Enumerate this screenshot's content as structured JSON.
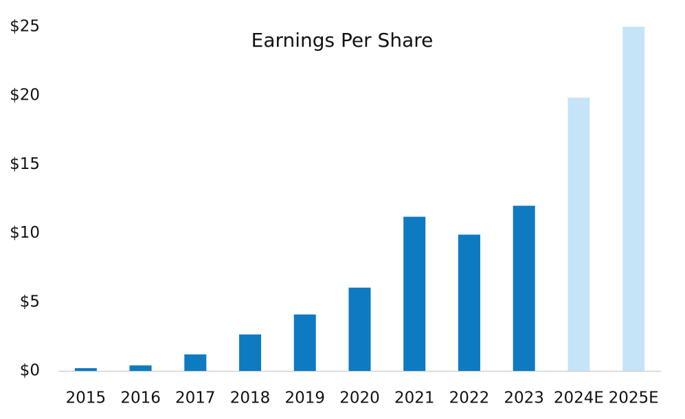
{
  "chart_data": {
    "type": "bar",
    "title": "Earnings Per Share",
    "categories": [
      "2015",
      "2016",
      "2017",
      "2018",
      "2019",
      "2020",
      "2021",
      "2022",
      "2023",
      "2024E",
      "2025E"
    ],
    "values": [
      0.2,
      0.4,
      1.2,
      2.65,
      4.1,
      6.05,
      11.2,
      9.9,
      12.0,
      19.85,
      25.0
    ],
    "colors": [
      "#0e7ac1",
      "#0e7ac1",
      "#0e7ac1",
      "#0e7ac1",
      "#0e7ac1",
      "#0e7ac1",
      "#0e7ac1",
      "#0e7ac1",
      "#0e7ac1",
      "#c6e4f7",
      "#c6e4f7"
    ],
    "ylim": [
      0,
      25
    ],
    "yticks": [
      {
        "value": 0,
        "label": "$0"
      },
      {
        "value": 5,
        "label": "$5"
      },
      {
        "value": 10,
        "label": "$10"
      },
      {
        "value": 15,
        "label": "$15"
      },
      {
        "value": 20,
        "label": "$20"
      },
      {
        "value": 25,
        "label": "$25"
      }
    ],
    "grid": false
  }
}
